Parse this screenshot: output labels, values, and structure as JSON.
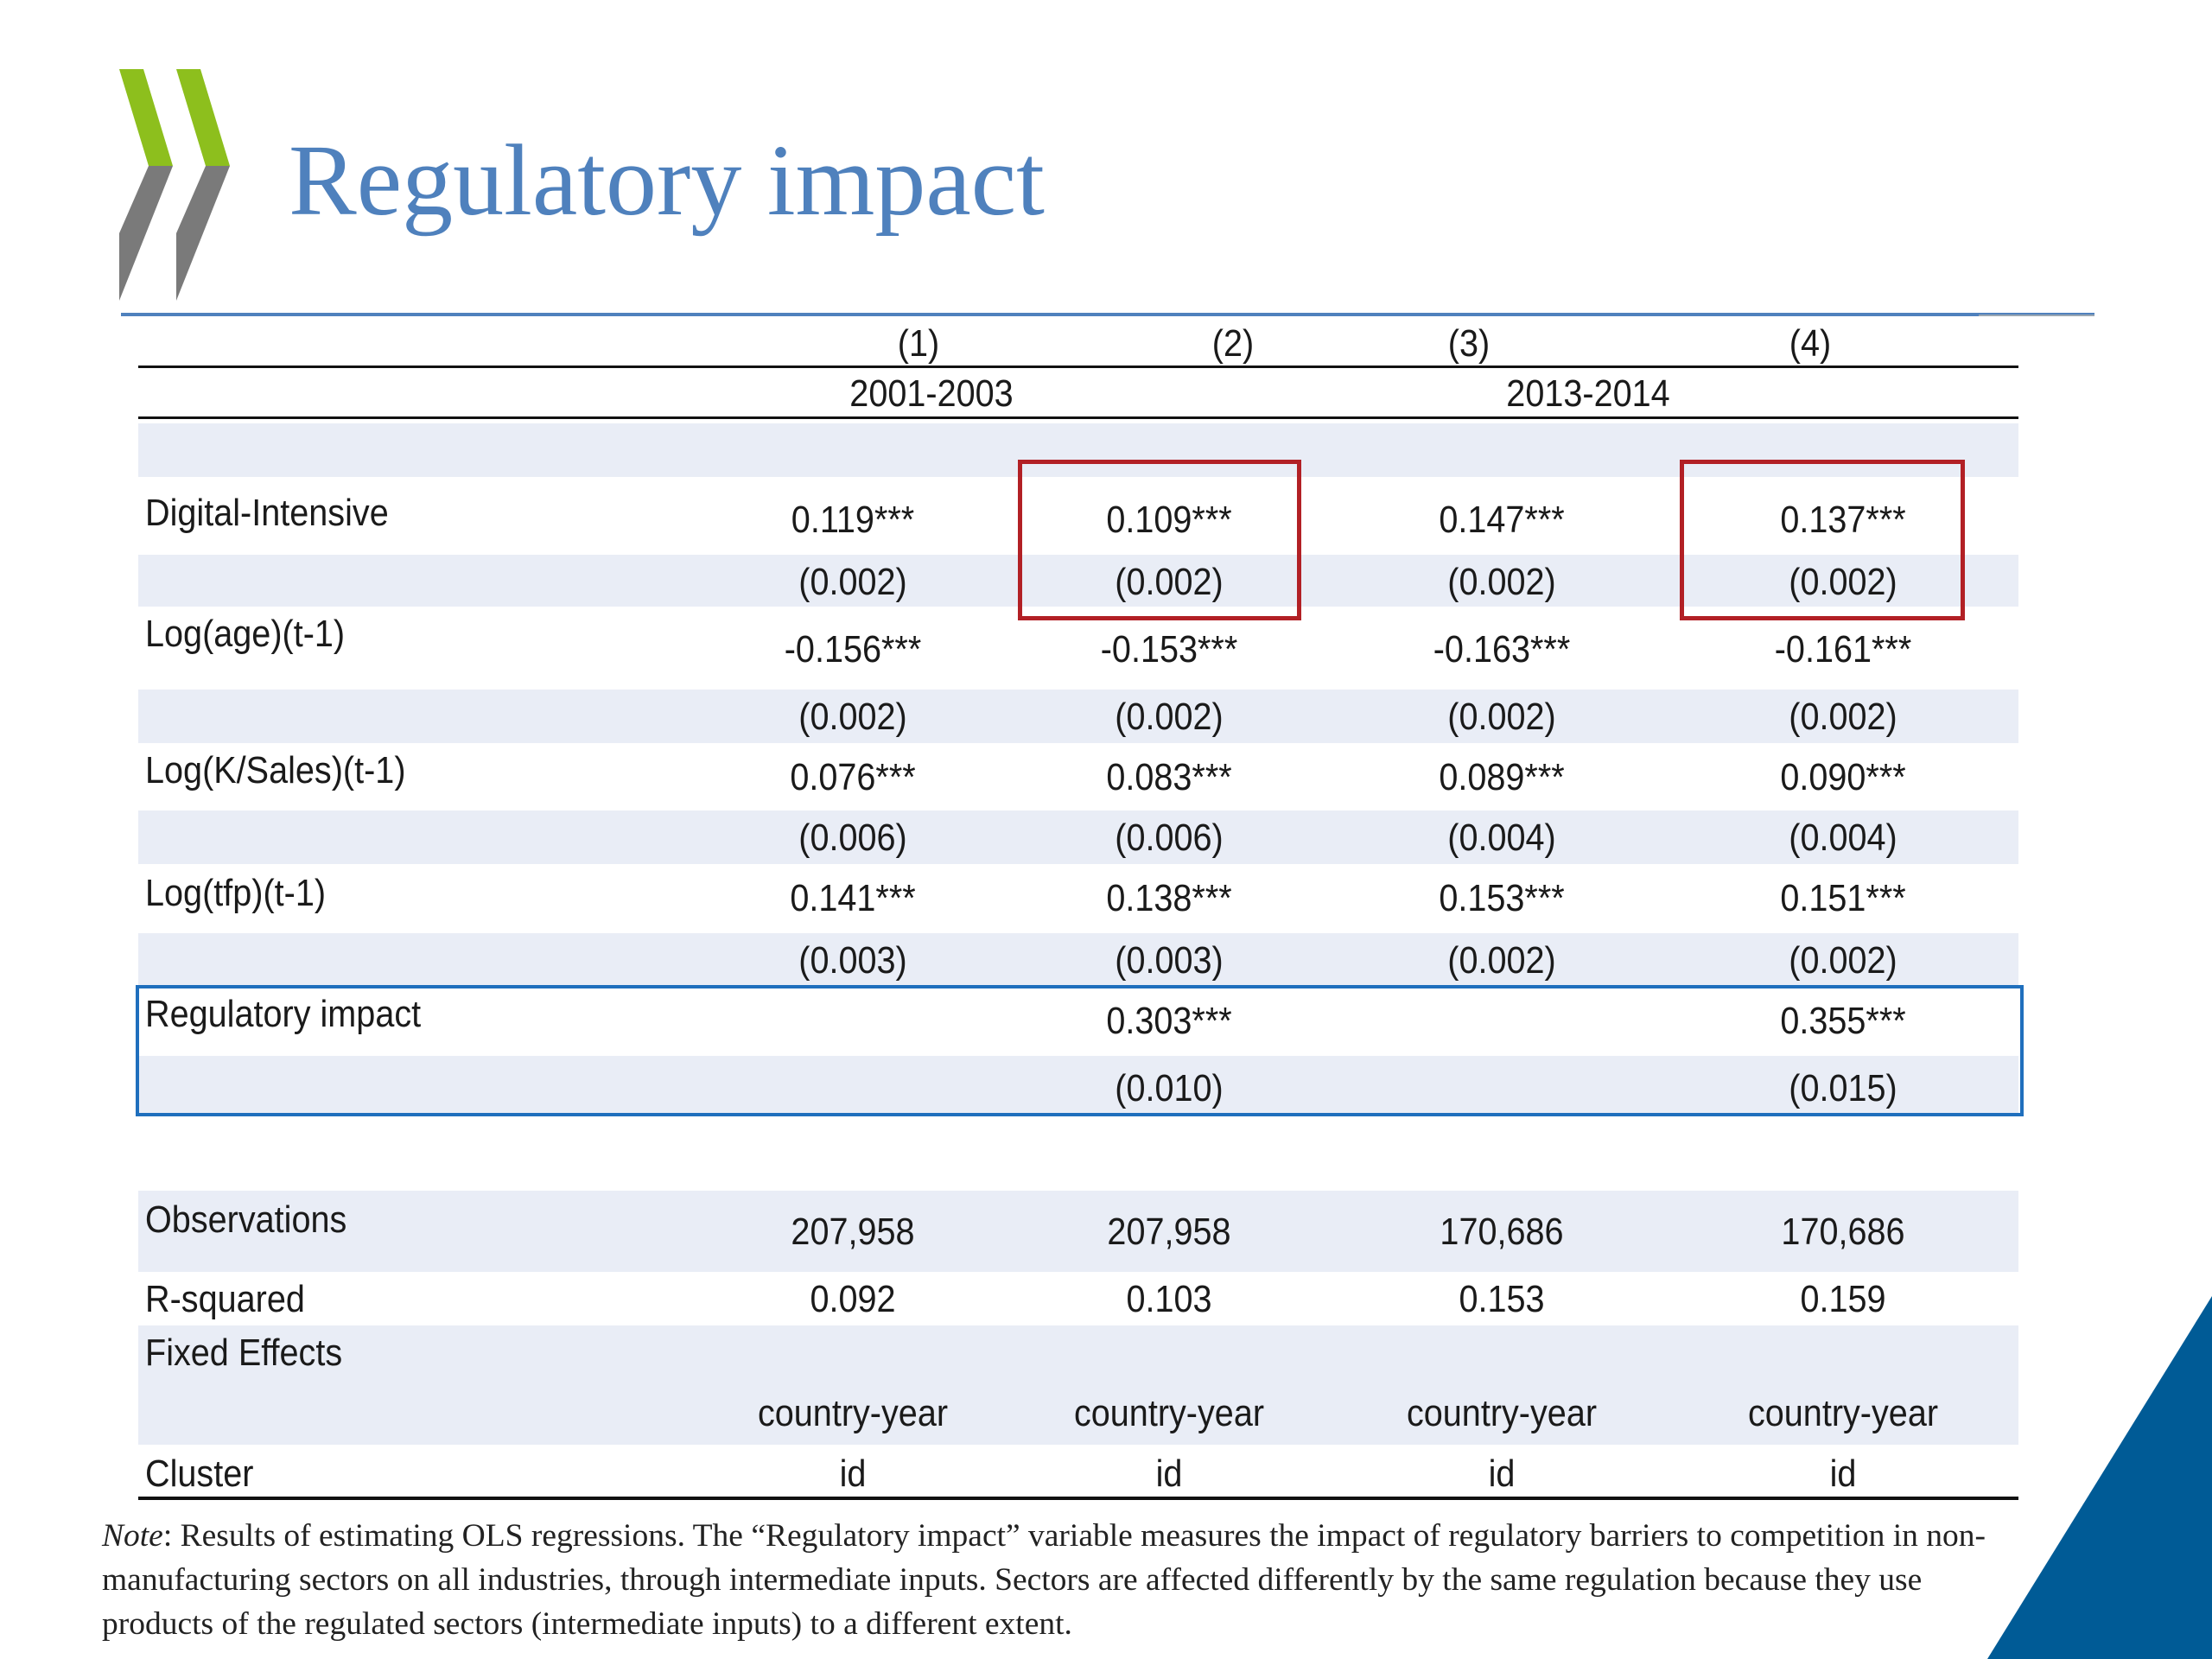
{
  "slide": {
    "title": "Regulatory impact",
    "logo_icon": "double-chevron-icon",
    "accent_color": "#4f81bd",
    "corner_color": "#005b96"
  },
  "table": {
    "column_numbers": [
      "(1)",
      "(2)",
      "(3)",
      "(4)"
    ],
    "periods": [
      "2001-2003",
      "2013-2014"
    ],
    "rows": {
      "digital": {
        "label": "Digital-Intensive",
        "coef": [
          "0.119***",
          "0.109***",
          "0.147***",
          "0.137***"
        ],
        "se": [
          "(0.002)",
          "(0.002)",
          "(0.002)",
          "(0.002)"
        ]
      },
      "age": {
        "label": "Log(age)(t-1)",
        "coef": [
          "-0.156***",
          "-0.153***",
          "-0.163***",
          "-0.161***"
        ],
        "se": [
          "(0.002)",
          "(0.002)",
          "(0.002)",
          "(0.002)"
        ]
      },
      "ksales": {
        "label": "Log(K/Sales)(t-1)",
        "coef": [
          "0.076***",
          "0.083***",
          "0.089***",
          "0.090***"
        ],
        "se": [
          "(0.006)",
          "(0.006)",
          "(0.004)",
          "(0.004)"
        ]
      },
      "tfp": {
        "label": "Log(tfp)(t-1)",
        "coef": [
          "0.141***",
          "0.138***",
          "0.153***",
          "0.151***"
        ],
        "se": [
          "(0.003)",
          "(0.003)",
          "(0.002)",
          "(0.002)"
        ]
      },
      "regulatory": {
        "label": "Regulatory impact",
        "coef": [
          "",
          "0.303***",
          "",
          "0.355***"
        ],
        "se": [
          "",
          "(0.010)",
          "",
          "(0.015)"
        ]
      }
    },
    "stats": {
      "observations": {
        "label": "Observations",
        "values": [
          "207,958",
          "207,958",
          "170,686",
          "170,686"
        ]
      },
      "rsquared": {
        "label": "R-squared",
        "values": [
          "0.092",
          "0.103",
          "0.153",
          "0.159"
        ]
      },
      "fixed_effects": {
        "label": "Fixed Effects",
        "values": [
          "country-year",
          "country-year",
          "country-year",
          "country-year"
        ]
      },
      "cluster": {
        "label": "Cluster",
        "values": [
          "id",
          "id",
          "id",
          "id"
        ]
      }
    }
  },
  "note": {
    "lead": "Note",
    "text": ": Results of estimating OLS regressions. The “Regulatory impact” variable measures the impact of regulatory barriers to competition in non-manufacturing sectors on all industries, through intermediate inputs. Sectors are affected differently by the same regulation because they use products of the regulated sectors (intermediate inputs) to a different extent."
  }
}
